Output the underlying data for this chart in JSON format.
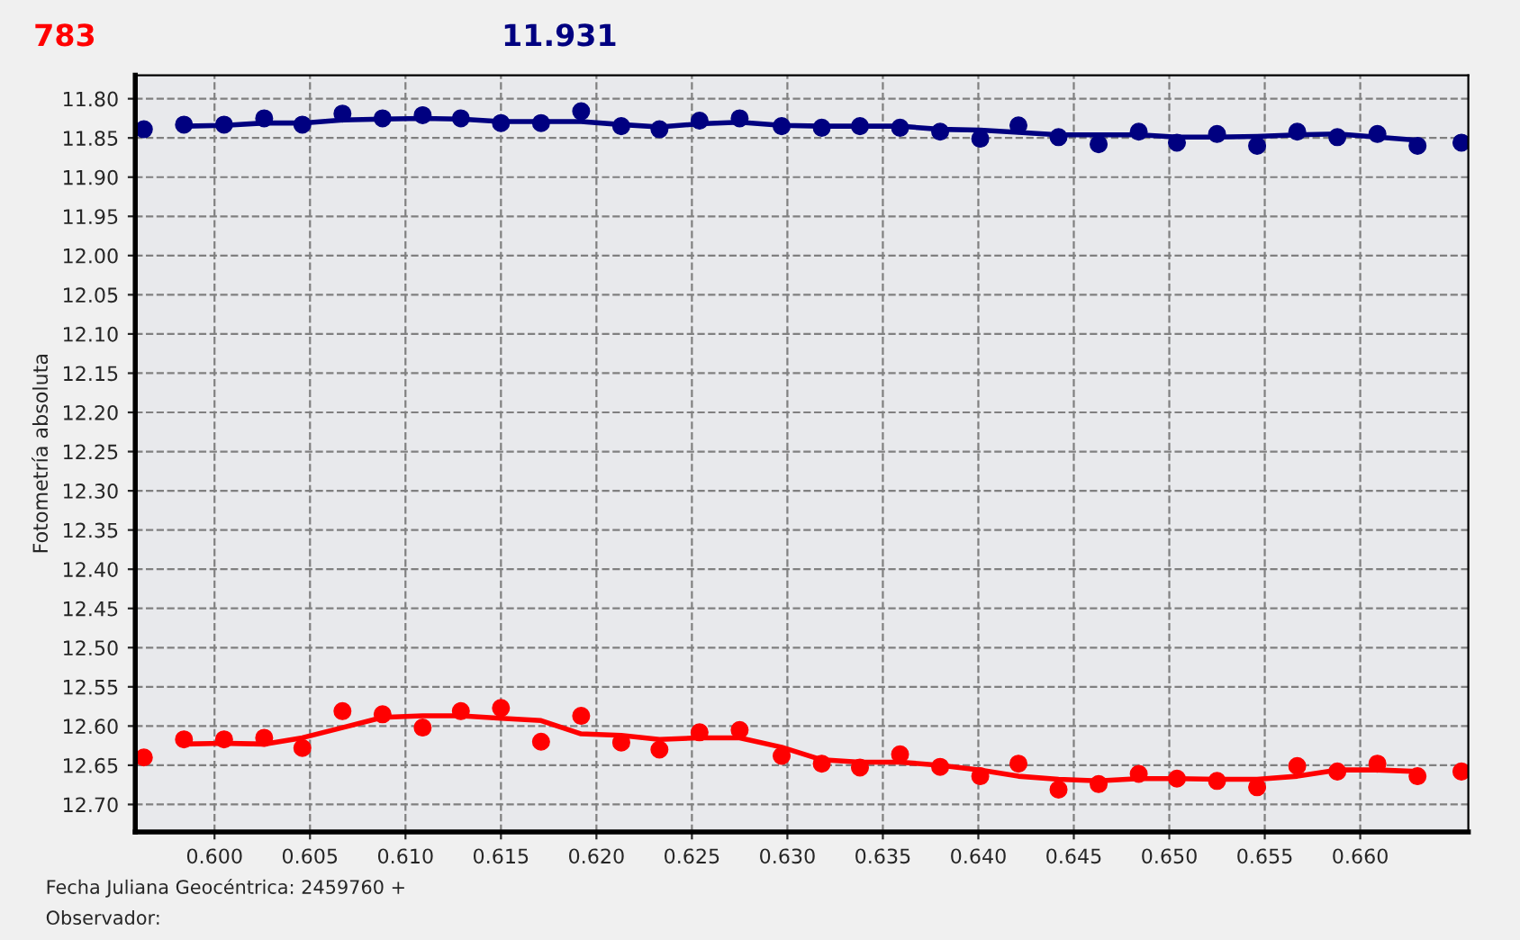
{
  "chart_data": {
    "type": "scatter",
    "ylabel": "Fotometría absoluta",
    "annotations": [
      "Fecha Juliana Geocéntrica: 2459760 +",
      "Observador:"
    ],
    "x": [
      0.5963,
      0.5984,
      0.6005,
      0.6026,
      0.6046,
      0.6067,
      0.6088,
      0.6109,
      0.6129,
      0.615,
      0.6171,
      0.6192,
      0.6213,
      0.6233,
      0.6254,
      0.6275,
      0.6297,
      0.6318,
      0.6338,
      0.6359,
      0.638,
      0.6401,
      0.6421,
      0.6442,
      0.6463,
      0.6484,
      0.6504,
      0.6525,
      0.6546,
      0.6567,
      0.6588,
      0.6609,
      0.663,
      0.6653
    ],
    "series": [
      {
        "name": "783",
        "color": "#ff0000",
        "values": [
          12.64,
          12.617,
          12.617,
          12.615,
          12.628,
          12.581,
          12.585,
          12.602,
          12.581,
          12.577,
          12.62,
          12.587,
          12.621,
          12.63,
          12.608,
          12.605,
          12.638,
          12.648,
          12.653,
          12.636,
          12.652,
          12.664,
          12.648,
          12.681,
          12.674,
          12.661,
          12.667,
          12.67,
          12.678,
          12.651,
          12.658,
          12.648,
          12.664,
          12.658
        ]
      },
      {
        "name": "11.931",
        "color": "#000080",
        "values": [
          11.839,
          11.833,
          11.833,
          11.825,
          11.833,
          11.819,
          11.825,
          11.821,
          11.825,
          11.831,
          11.831,
          11.816,
          11.835,
          11.839,
          11.828,
          11.825,
          11.835,
          11.837,
          11.835,
          11.837,
          11.842,
          11.851,
          11.834,
          11.849,
          11.858,
          11.842,
          11.856,
          11.845,
          11.86,
          11.842,
          11.849,
          11.845,
          11.86,
          11.856
        ]
      },
      {
        "type": "line",
        "marker": "none",
        "color": "#ff0000",
        "x": [
          0.5984,
          0.6005,
          0.6026,
          0.6046,
          0.6067,
          0.6088,
          0.6109,
          0.6129,
          0.615,
          0.6171,
          0.6192,
          0.6213,
          0.6233,
          0.6254,
          0.6275,
          0.6297,
          0.6318,
          0.6338,
          0.6359,
          0.638,
          0.6401,
          0.6421,
          0.6442,
          0.6463,
          0.6484,
          0.6504,
          0.6525,
          0.6546,
          0.6567,
          0.6588,
          0.6609,
          0.663
        ],
        "values": [
          12.623,
          12.622,
          12.623,
          12.615,
          12.602,
          12.589,
          12.587,
          12.587,
          12.59,
          12.593,
          12.61,
          12.612,
          12.617,
          12.615,
          12.615,
          12.627,
          12.643,
          12.646,
          12.646,
          12.65,
          12.656,
          12.664,
          12.668,
          12.67,
          12.667,
          12.667,
          12.668,
          12.668,
          12.664,
          12.656,
          12.656,
          12.658
        ]
      },
      {
        "type": "line",
        "marker": "none",
        "color": "#000080",
        "x": [
          0.5984,
          0.6005,
          0.6026,
          0.6046,
          0.6067,
          0.6088,
          0.6109,
          0.6129,
          0.615,
          0.6171,
          0.6192,
          0.6213,
          0.6233,
          0.6254,
          0.6275,
          0.6297,
          0.6318,
          0.6338,
          0.6359,
          0.638,
          0.6401,
          0.6421,
          0.6442,
          0.6463,
          0.6484,
          0.6504,
          0.6525,
          0.6546,
          0.6567,
          0.6588,
          0.6609,
          0.663
        ],
        "values": [
          11.835,
          11.834,
          11.831,
          11.831,
          11.827,
          11.826,
          11.825,
          11.826,
          11.829,
          11.829,
          11.829,
          11.833,
          11.836,
          11.832,
          11.83,
          11.834,
          11.835,
          11.835,
          11.835,
          11.839,
          11.84,
          11.843,
          11.846,
          11.846,
          11.846,
          11.849,
          11.849,
          11.848,
          11.846,
          11.845,
          11.849,
          11.853
        ]
      }
    ],
    "marker": "circle",
    "line_style": "solid",
    "legend": "top left",
    "grid": true,
    "xlim": [
      0.59585,
      0.66566
    ],
    "ylim": [
      12.735,
      11.77
    ],
    "xticks": [
      {
        "value": 0.6,
        "label": "0.600"
      },
      {
        "value": 0.605,
        "label": "0.605"
      },
      {
        "value": 0.61,
        "label": "0.610"
      },
      {
        "value": 0.615,
        "label": "0.615"
      },
      {
        "value": 0.62,
        "label": "0.620"
      },
      {
        "value": 0.625,
        "label": "0.625"
      },
      {
        "value": 0.63,
        "label": "0.630"
      },
      {
        "value": 0.635,
        "label": "0.635"
      },
      {
        "value": 0.64,
        "label": "0.640"
      },
      {
        "value": 0.645,
        "label": "0.645"
      },
      {
        "value": 0.65,
        "label": "0.650"
      },
      {
        "value": 0.655,
        "label": "0.655"
      },
      {
        "value": 0.66,
        "label": "0.660"
      }
    ],
    "yticks": [
      {
        "value": 11.8,
        "label": "11.80"
      },
      {
        "value": 11.85,
        "label": "11.85"
      },
      {
        "value": 11.9,
        "label": "11.90"
      },
      {
        "value": 11.95,
        "label": "11.95"
      },
      {
        "value": 12.0,
        "label": "12.00"
      },
      {
        "value": 12.05,
        "label": "12.05"
      },
      {
        "value": 12.1,
        "label": "12.10"
      },
      {
        "value": 12.15,
        "label": "12.15"
      },
      {
        "value": 12.2,
        "label": "12.20"
      },
      {
        "value": 12.25,
        "label": "12.25"
      },
      {
        "value": 12.3,
        "label": "12.30"
      },
      {
        "value": 12.35,
        "label": "12.35"
      },
      {
        "value": 12.4,
        "label": "12.40"
      },
      {
        "value": 12.45,
        "label": "12.45"
      },
      {
        "value": 12.5,
        "label": "12.50"
      },
      {
        "value": 12.55,
        "label": "12.55"
      },
      {
        "value": 12.6,
        "label": "12.60"
      },
      {
        "value": 12.65,
        "label": "12.65"
      },
      {
        "value": 12.7,
        "label": "12.70"
      }
    ]
  }
}
